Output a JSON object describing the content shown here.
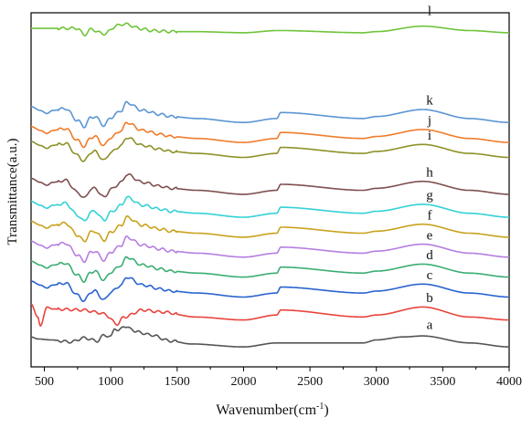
{
  "chart_data": {
    "type": "line",
    "title": "",
    "xlabel": "Wavenumber(cm⁻¹)",
    "ylabel": "Transmittance(a.u.)",
    "xlim": [
      400,
      4000
    ],
    "x_ticks": [
      500,
      1000,
      1500,
      2000,
      2500,
      3000,
      3500,
      4000
    ],
    "y_ticks_shown": false,
    "grid": false,
    "legend": "none; curves labelled in-plot",
    "series": [
      {
        "name": "l",
        "color": "#6fc43a",
        "baseline": 20.0,
        "profile": "A",
        "scale": 0.55,
        "x": [
          400,
          500,
          750,
          800,
          850,
          950,
          1050,
          1100,
          1240,
          1300,
          1380,
          1450,
          1640,
          2000,
          2260,
          2900,
          3000,
          3350,
          3700,
          4000
        ],
        "y": [
          0.8,
          0.8,
          0.8,
          -0.4,
          0.6,
          -0.2,
          1.3,
          1.6,
          0.7,
          0.4,
          0.3,
          0.2,
          0.2,
          0.0,
          0.4,
          0.0,
          0.2,
          1.2,
          0.4,
          0.0
        ]
      },
      {
        "name": "k",
        "color": "#5b95d2",
        "baseline": 11.0,
        "profile": "B",
        "scale": 1.0,
        "x": [
          400,
          470,
          520,
          560,
          660,
          750,
          800,
          850,
          880,
          950,
          1000,
          1080,
          1120,
          1240,
          1380,
          1450,
          1650,
          2000,
          2250,
          2280,
          2900,
          3000,
          3350,
          3700,
          4000
        ],
        "y": [
          1.6,
          1.2,
          0.9,
          1.2,
          1.4,
          0.2,
          -0.4,
          0.5,
          0.6,
          -0.3,
          0.5,
          1.2,
          2.0,
          1.2,
          0.8,
          0.6,
          0.4,
          0.0,
          0.4,
          1.0,
          0.4,
          0.6,
          1.3,
          0.4,
          0.0
        ]
      },
      {
        "name": "j",
        "color": "#f07c2a",
        "baseline": 9.0,
        "profile": "B",
        "scale": 1.0,
        "x": [
          400,
          470,
          520,
          560,
          660,
          750,
          800,
          850,
          880,
          950,
          1000,
          1080,
          1120,
          1240,
          1380,
          1450,
          1650,
          2000,
          2250,
          2280,
          2900,
          3000,
          3350,
          3700,
          4000
        ],
        "y": [
          1.6,
          1.2,
          0.9,
          1.2,
          1.4,
          0.2,
          -0.4,
          0.5,
          0.6,
          -0.3,
          0.5,
          1.2,
          2.0,
          1.2,
          0.8,
          0.6,
          0.4,
          0.0,
          0.4,
          1.0,
          0.4,
          0.6,
          1.3,
          0.4,
          0.0
        ]
      },
      {
        "name": "i",
        "color": "#8e9128",
        "baseline": 7.5,
        "profile": "B",
        "scale": 1.0,
        "x": [
          400,
          470,
          520,
          560,
          660,
          750,
          800,
          850,
          880,
          950,
          1000,
          1080,
          1120,
          1240,
          1380,
          1450,
          1650,
          2000,
          2250,
          2280,
          2900,
          3000,
          3350,
          3700,
          4000
        ],
        "y": [
          1.6,
          1.2,
          0.9,
          1.2,
          1.4,
          0.2,
          -0.4,
          0.5,
          0.6,
          -0.3,
          0.5,
          1.2,
          2.0,
          1.2,
          0.8,
          0.6,
          0.4,
          0.0,
          0.4,
          1.0,
          0.4,
          0.6,
          1.3,
          0.4,
          0.0
        ]
      },
      {
        "name": "h",
        "color": "#7f4f4f",
        "baseline": 3.8,
        "profile": "B",
        "scale": 1.0,
        "x": [
          400,
          470,
          520,
          560,
          660,
          750,
          800,
          850,
          880,
          950,
          1000,
          1080,
          1120,
          1240,
          1380,
          1450,
          1650,
          2000,
          2250,
          2280,
          2900,
          3000,
          3350,
          3700,
          4000
        ],
        "y": [
          1.6,
          1.2,
          0.9,
          1.2,
          1.4,
          0.2,
          -0.4,
          0.5,
          0.6,
          -0.3,
          0.5,
          1.2,
          2.0,
          1.2,
          0.8,
          0.6,
          0.4,
          0.0,
          0.4,
          1.0,
          0.4,
          0.6,
          1.3,
          0.4,
          0.0
        ]
      },
      {
        "name": "g",
        "color": "#33d1d6",
        "baseline": 1.5,
        "profile": "B",
        "scale": 1.0,
        "x": [
          400,
          470,
          520,
          560,
          660,
          750,
          800,
          850,
          880,
          950,
          1000,
          1080,
          1120,
          1240,
          1380,
          1450,
          1650,
          2000,
          2250,
          2280,
          2900,
          3000,
          3350,
          3700,
          4000
        ],
        "y": [
          1.6,
          1.2,
          0.9,
          1.2,
          1.4,
          0.2,
          -0.4,
          0.5,
          0.6,
          -0.3,
          0.5,
          1.2,
          2.0,
          1.2,
          0.8,
          0.6,
          0.4,
          0.0,
          0.4,
          1.0,
          0.4,
          0.6,
          1.3,
          0.4,
          0.0
        ]
      },
      {
        "name": "f",
        "color": "#c9a21c",
        "baseline": -0.5,
        "profile": "B",
        "scale": 1.0,
        "x": [
          400,
          470,
          520,
          560,
          660,
          750,
          800,
          850,
          880,
          950,
          1000,
          1080,
          1120,
          1240,
          1380,
          1450,
          1650,
          2000,
          2250,
          2280,
          2900,
          3000,
          3350,
          3700,
          4000
        ],
        "y": [
          1.6,
          1.2,
          0.9,
          1.2,
          1.4,
          0.2,
          -0.4,
          0.5,
          0.6,
          -0.3,
          0.5,
          1.2,
          2.0,
          1.2,
          0.8,
          0.6,
          0.4,
          0.0,
          0.4,
          1.0,
          0.4,
          0.6,
          1.3,
          0.4,
          0.0
        ]
      },
      {
        "name": "e",
        "color": "#b57ee0",
        "baseline": -2.5,
        "profile": "B",
        "scale": 1.0,
        "x": [
          400,
          470,
          520,
          560,
          660,
          750,
          800,
          850,
          880,
          950,
          1000,
          1080,
          1120,
          1240,
          1380,
          1450,
          1650,
          2000,
          2250,
          2280,
          2900,
          3000,
          3350,
          3700,
          4000
        ],
        "y": [
          1.6,
          1.2,
          0.9,
          1.2,
          1.4,
          0.2,
          -0.4,
          0.5,
          0.6,
          -0.3,
          0.5,
          1.2,
          2.0,
          1.2,
          0.8,
          0.6,
          0.4,
          0.0,
          0.4,
          1.0,
          0.4,
          0.6,
          1.3,
          0.4,
          0.0
        ]
      },
      {
        "name": "d",
        "color": "#3aad73",
        "baseline": -4.5,
        "profile": "B",
        "scale": 1.0,
        "x": [
          400,
          470,
          520,
          560,
          660,
          750,
          800,
          850,
          880,
          950,
          1000,
          1080,
          1120,
          1240,
          1380,
          1450,
          1650,
          2000,
          2250,
          2280,
          2900,
          3000,
          3350,
          3700,
          4000
        ],
        "y": [
          1.6,
          1.2,
          0.9,
          1.2,
          1.4,
          0.2,
          -0.4,
          0.5,
          0.6,
          -0.3,
          0.5,
          1.2,
          2.0,
          1.2,
          0.8,
          0.6,
          0.4,
          0.0,
          0.4,
          1.0,
          0.4,
          0.6,
          1.3,
          0.4,
          0.0
        ]
      },
      {
        "name": "c",
        "color": "#2a63cf",
        "baseline": -6.5,
        "profile": "B",
        "scale": 1.0,
        "x": [
          400,
          470,
          520,
          560,
          660,
          750,
          800,
          850,
          880,
          950,
          1000,
          1080,
          1120,
          1240,
          1380,
          1450,
          1650,
          2000,
          2250,
          2280,
          2900,
          3000,
          3350,
          3700,
          4000
        ],
        "y": [
          1.6,
          1.2,
          0.9,
          1.2,
          1.4,
          0.2,
          -0.4,
          0.5,
          0.6,
          -0.3,
          0.5,
          1.2,
          2.0,
          1.2,
          0.8,
          0.6,
          0.4,
          0.0,
          0.4,
          1.0,
          0.4,
          0.6,
          1.3,
          0.4,
          0.0
        ]
      },
      {
        "name": "b",
        "color": "#e8443c",
        "baseline": -8.8,
        "profile": "C",
        "scale": 1.0,
        "x": [
          400,
          450,
          470,
          520,
          560,
          800,
          880,
          950,
          1050,
          1100,
          1240,
          1380,
          1640,
          2000,
          2250,
          2280,
          2900,
          3000,
          3350,
          3700,
          4000
        ],
        "y": [
          1.6,
          0.3,
          -0.6,
          1.3,
          1.1,
          1.0,
          0.8,
          0.6,
          -0.4,
          0.3,
          1.0,
          0.8,
          0.3,
          0.0,
          0.5,
          1.0,
          0.3,
          0.5,
          1.3,
          0.3,
          0.0
        ]
      },
      {
        "name": "a",
        "color": "#555555",
        "baseline": -11.5,
        "profile": "D",
        "scale": 1.0,
        "x": [
          400,
          450,
          550,
          700,
          800,
          900,
          950,
          1000,
          1030,
          1060,
          1100,
          1150,
          1200,
          1300,
          1450,
          1600,
          2000,
          2250,
          2900,
          3000,
          3200,
          3350,
          3700,
          4000
        ],
        "y": [
          1.0,
          0.8,
          0.7,
          0.5,
          0.9,
          0.6,
          1.2,
          1.0,
          1.9,
          1.6,
          2.1,
          1.8,
          1.5,
          1.2,
          0.6,
          0.3,
          0.0,
          0.4,
          0.4,
          0.7,
          1.0,
          1.1,
          0.4,
          0.0
        ]
      }
    ]
  }
}
